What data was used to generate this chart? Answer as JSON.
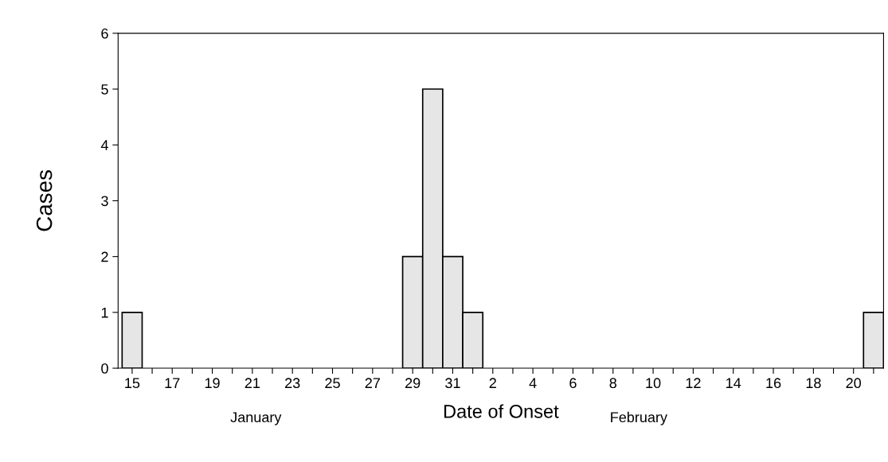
{
  "chart_data": {
    "type": "bar",
    "xlabel": "Date of Onset",
    "ylabel": "Cases",
    "categories": [
      "15",
      null,
      "17",
      null,
      "19",
      null,
      "21",
      null,
      "23",
      null,
      "25",
      null,
      "27",
      null,
      "29",
      null,
      "31",
      null,
      "2",
      null,
      "4",
      null,
      "6",
      null,
      "8",
      null,
      "10",
      null,
      "12",
      null,
      "14",
      null,
      "16",
      null,
      "18",
      null,
      "20",
      null
    ],
    "values": [
      1,
      0,
      0,
      0,
      0,
      0,
      0,
      0,
      0,
      0,
      0,
      0,
      0,
      0,
      2,
      5,
      2,
      1,
      0,
      0,
      0,
      0,
      0,
      0,
      0,
      0,
      0,
      0,
      0,
      0,
      0,
      0,
      0,
      0,
      0,
      0,
      0,
      1
    ],
    "color": "#e6e6e6",
    "ylim": [
      0,
      6
    ],
    "yticks": [
      0,
      1,
      2,
      3,
      4,
      5,
      6
    ],
    "grid": false,
    "legend": false,
    "annotations": [
      "January",
      "February"
    ]
  }
}
